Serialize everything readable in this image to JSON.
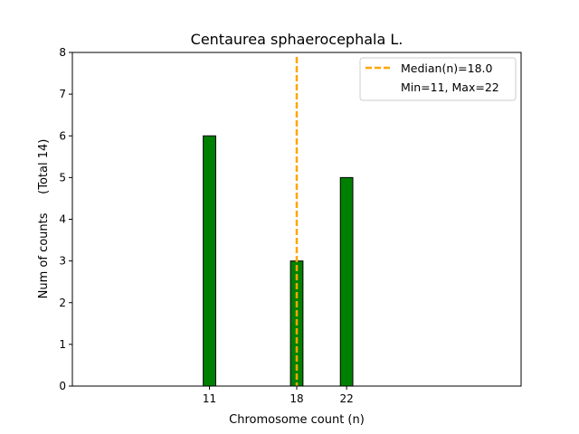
{
  "chart_data": {
    "type": "bar",
    "title": "Centaurea sphaerocephala L.",
    "xlabel": "Chromosome count (n)",
    "ylabel": "Num of counts     (Total 14)",
    "x": [
      11,
      18,
      22
    ],
    "values": [
      6,
      3,
      5
    ],
    "xlim": [
      0,
      36
    ],
    "ylim": [
      0,
      8
    ],
    "yticks": [
      0,
      1,
      2,
      3,
      4,
      5,
      6,
      7,
      8
    ],
    "xticks": [
      11,
      18,
      22
    ],
    "bar_width": 1,
    "bar_color": "#008000",
    "bar_edge_color": "#000000",
    "median": 18.0,
    "median_color": "#ffa500",
    "legend": {
      "position": "top-right",
      "entries": [
        "Median(n)=18.0",
        "Min=11, Max=22"
      ]
    }
  }
}
